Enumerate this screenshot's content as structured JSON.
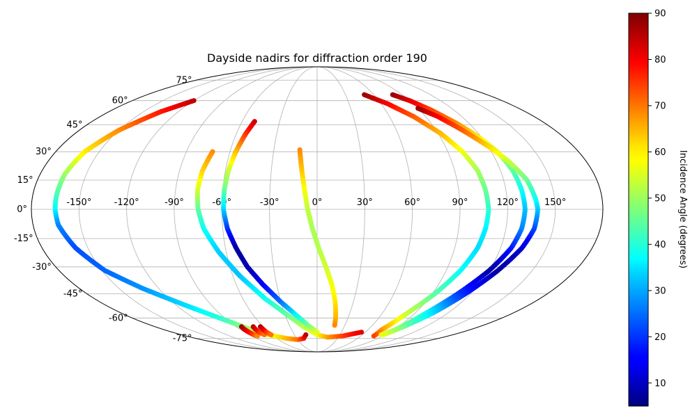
{
  "chart_data": {
    "type": "scatter",
    "projection": "mollweide",
    "title": "Dayside nadirs for diffraction order 190",
    "xlabel": "",
    "ylabel": "",
    "grid": true,
    "lon_ticks": [
      "-150°",
      "-120°",
      "-90°",
      "-60°",
      "-30°",
      "0°",
      "30°",
      "60°",
      "90°",
      "120°",
      "150°"
    ],
    "lat_ticks": [
      "-75°",
      "-60°",
      "-45°",
      "-30°",
      "-15°",
      "0°",
      "15°",
      "30°",
      "45°",
      "60°",
      "75°"
    ],
    "colorbar": {
      "label": "Incidence Angle (degrees)",
      "colormap": "jet",
      "range": [
        5,
        90
      ],
      "ticks": [
        "10",
        "20",
        "30",
        "40",
        "50",
        "60",
        "70",
        "80",
        "90"
      ]
    },
    "tracks": [
      {
        "points": [
          [
            -120,
            60,
            85
          ],
          [
            -135,
            53,
            78
          ],
          [
            -150,
            42,
            68
          ],
          [
            -160,
            30,
            60
          ],
          [
            -164,
            18,
            50
          ],
          [
            -165,
            6,
            42
          ],
          [
            -165,
            0,
            37
          ],
          [
            -164,
            -8,
            27
          ],
          [
            -158,
            -20,
            22
          ],
          [
            -148,
            -32,
            24
          ],
          [
            -132,
            -42,
            28
          ],
          [
            -112,
            -52,
            34
          ],
          [
            -95,
            -60,
            40
          ],
          [
            -80,
            -67,
            50
          ],
          [
            -65,
            -72,
            56
          ],
          [
            -45,
            -75,
            64
          ],
          [
            -30,
            -76,
            70
          ],
          [
            -20,
            -75,
            78
          ],
          [
            -15,
            -72,
            85
          ]
        ]
      },
      {
        "points": [
          [
            -72,
            30,
            68
          ],
          [
            -75,
            20,
            62
          ],
          [
            -76,
            10,
            55
          ],
          [
            -75,
            0,
            45
          ],
          [
            -72,
            -10,
            38
          ],
          [
            -65,
            -22,
            33
          ],
          [
            -55,
            -35,
            32
          ],
          [
            -42,
            -48,
            38
          ],
          [
            -28,
            -58,
            45
          ],
          [
            -15,
            -66,
            52
          ],
          [
            0,
            -72,
            58
          ],
          [
            15,
            -74,
            66
          ],
          [
            35,
            -73,
            74
          ],
          [
            55,
            -70,
            82
          ]
        ]
      },
      {
        "points": [
          [
            -50,
            47,
            84
          ],
          [
            -53,
            40,
            76
          ],
          [
            -56,
            30,
            64
          ],
          [
            -58,
            20,
            54
          ],
          [
            -59,
            10,
            46
          ],
          [
            -59,
            0,
            34
          ],
          [
            -57,
            -10,
            20
          ],
          [
            -53,
            -20,
            8
          ],
          [
            -48,
            -30,
            9
          ],
          [
            -40,
            -40,
            15
          ],
          [
            -30,
            -50,
            25
          ],
          [
            -20,
            -58,
            36
          ],
          [
            -10,
            -65,
            46
          ],
          [
            0,
            -70,
            55
          ]
        ]
      },
      {
        "points": [
          [
            -12,
            31,
            68
          ],
          [
            -10,
            20,
            63
          ],
          [
            -8,
            10,
            58
          ],
          [
            -6,
            0,
            53
          ],
          [
            -3,
            -10,
            51
          ],
          [
            1,
            -20,
            52
          ],
          [
            6,
            -30,
            54
          ],
          [
            11,
            -40,
            57
          ],
          [
            15,
            -50,
            60
          ],
          [
            18,
            -60,
            64
          ],
          [
            19,
            -65,
            68
          ]
        ]
      },
      {
        "points": [
          [
            50,
            64,
            88
          ],
          [
            66,
            58,
            80
          ],
          [
            80,
            50,
            72
          ],
          [
            92,
            40,
            64
          ],
          [
            100,
            30,
            57
          ],
          [
            105,
            20,
            51
          ],
          [
            107,
            10,
            46
          ],
          [
            108,
            0,
            41
          ],
          [
            107,
            -10,
            36
          ],
          [
            105,
            -20,
            34
          ],
          [
            100,
            -32,
            37
          ],
          [
            92,
            -45,
            44
          ],
          [
            82,
            -58,
            54
          ],
          [
            76,
            -68,
            66
          ],
          [
            78,
            -73,
            74
          ]
        ]
      },
      {
        "points": [
          [
            80,
            64,
            88
          ],
          [
            90,
            60,
            82
          ],
          [
            100,
            54,
            74
          ],
          [
            110,
            46,
            68
          ],
          [
            118,
            38,
            60
          ],
          [
            124,
            30,
            53
          ],
          [
            128,
            20,
            45
          ],
          [
            130,
            10,
            38
          ],
          [
            131,
            0,
            32
          ],
          [
            130,
            -10,
            27
          ],
          [
            127,
            -20,
            18
          ],
          [
            120,
            -32,
            8
          ],
          [
            110,
            -45,
            20
          ],
          [
            100,
            -57,
            37
          ],
          [
            92,
            -68,
            50
          ],
          [
            85,
            -72,
            57
          ]
        ]
      },
      {
        "points": [
          [
            90,
            55,
            88
          ],
          [
            100,
            50,
            80
          ],
          [
            110,
            42,
            72
          ],
          [
            120,
            33,
            62
          ],
          [
            128,
            25,
            54
          ],
          [
            135,
            15,
            46
          ],
          [
            138,
            5,
            38
          ],
          [
            139,
            0,
            33
          ],
          [
            138,
            -10,
            22
          ],
          [
            134,
            -20,
            12
          ],
          [
            126,
            -32,
            8
          ],
          [
            116,
            -45,
            18
          ],
          [
            106,
            -57,
            34
          ],
          [
            96,
            -66,
            46
          ],
          [
            88,
            -72,
            56
          ]
        ]
      },
      {
        "points": [
          [
            -84,
            -66,
            88
          ],
          [
            -85,
            -68,
            84
          ],
          [
            -85,
            -70,
            80
          ],
          [
            -84,
            -72,
            74
          ],
          [
            -82,
            -73,
            68
          ]
        ]
      },
      {
        "points": [
          [
            -71,
            -66,
            86
          ],
          [
            -72,
            -68,
            82
          ],
          [
            -72,
            -70,
            76
          ],
          [
            -70,
            -72,
            70
          ]
        ]
      },
      {
        "points": [
          [
            -63,
            -66,
            87
          ],
          [
            -63,
            -68,
            82
          ],
          [
            -63,
            -70,
            76
          ],
          [
            -61,
            -72,
            70
          ]
        ]
      }
    ]
  }
}
